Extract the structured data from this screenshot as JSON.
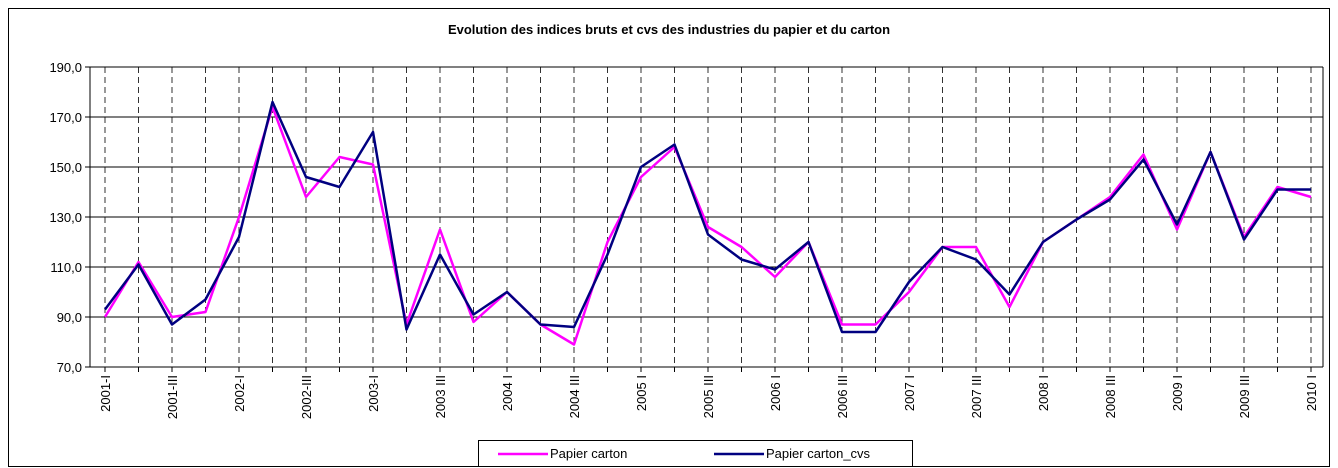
{
  "chart_data": {
    "type": "line",
    "title": "Evolution des indices bruts et cvs des industries du papier et du carton",
    "categories": [
      "2001-I",
      null,
      "2001-III",
      null,
      "2002-I",
      null,
      "2002-III",
      null,
      "2003-I",
      null,
      "2003 III",
      null,
      "2004 I",
      null,
      "2004 III",
      null,
      "2005 I",
      null,
      "2005 III",
      null,
      "2006 I",
      null,
      "2006 III",
      null,
      "2007 I",
      null,
      "2007 III",
      null,
      "2008 I",
      null,
      "2008 III",
      null,
      "2009 I",
      null,
      "2009 III",
      null,
      "2010 I"
    ],
    "series": [
      {
        "name": "Papier carton",
        "color": "#ff00ff",
        "values": [
          90,
          112,
          90,
          92,
          130,
          174,
          138,
          154,
          151,
          87,
          125,
          88,
          100,
          87,
          79,
          120,
          146,
          158,
          126,
          118,
          106,
          120,
          87,
          87,
          100,
          118,
          118,
          94,
          120,
          129,
          138,
          155,
          125,
          156,
          122,
          142,
          138
        ]
      },
      {
        "name": "Papier carton_cvs",
        "color": "#000080",
        "values": [
          93,
          111,
          87,
          97,
          122,
          176,
          146,
          142,
          164,
          85,
          115,
          91,
          100,
          87,
          86,
          115,
          150,
          159,
          123,
          113,
          109,
          120,
          84,
          84,
          104,
          118,
          113,
          99,
          120,
          129,
          137,
          153,
          127,
          156,
          121,
          141,
          141
        ]
      }
    ],
    "ylim": [
      70,
      190
    ],
    "yticks": [
      {
        "value": 70,
        "label": "70,0"
      },
      {
        "value": 90,
        "label": "90,0"
      },
      {
        "value": 110,
        "label": "110,0"
      },
      {
        "value": 130,
        "label": "130,0"
      },
      {
        "value": 150,
        "label": "150,0"
      },
      {
        "value": 170,
        "label": "170,0"
      },
      {
        "value": 190,
        "label": "190,0"
      }
    ],
    "grid": true,
    "legend": "bottom"
  }
}
